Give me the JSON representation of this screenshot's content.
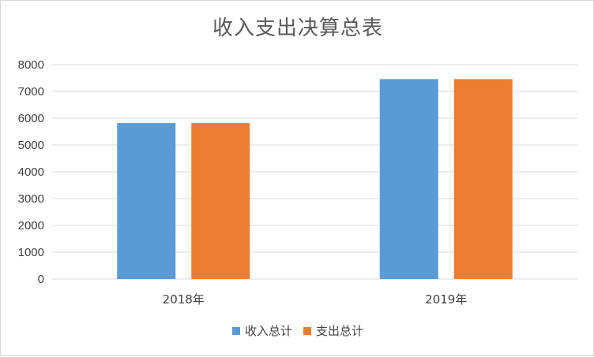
{
  "chart_data": {
    "type": "bar",
    "title": "收入支出决算总表",
    "categories": [
      "2018年",
      "2019年"
    ],
    "series": [
      {
        "name": "收入总计",
        "values": [
          5820,
          7460
        ],
        "color": "#5b9bd5"
      },
      {
        "name": "支出总计",
        "values": [
          5820,
          7460
        ],
        "color": "#ed7d31"
      }
    ],
    "ylim": [
      0,
      8000
    ],
    "yticks": [
      0,
      1000,
      2000,
      3000,
      4000,
      5000,
      6000,
      7000,
      8000
    ],
    "grid": true,
    "legend_position": "bottom",
    "xlabel": "",
    "ylabel": ""
  }
}
